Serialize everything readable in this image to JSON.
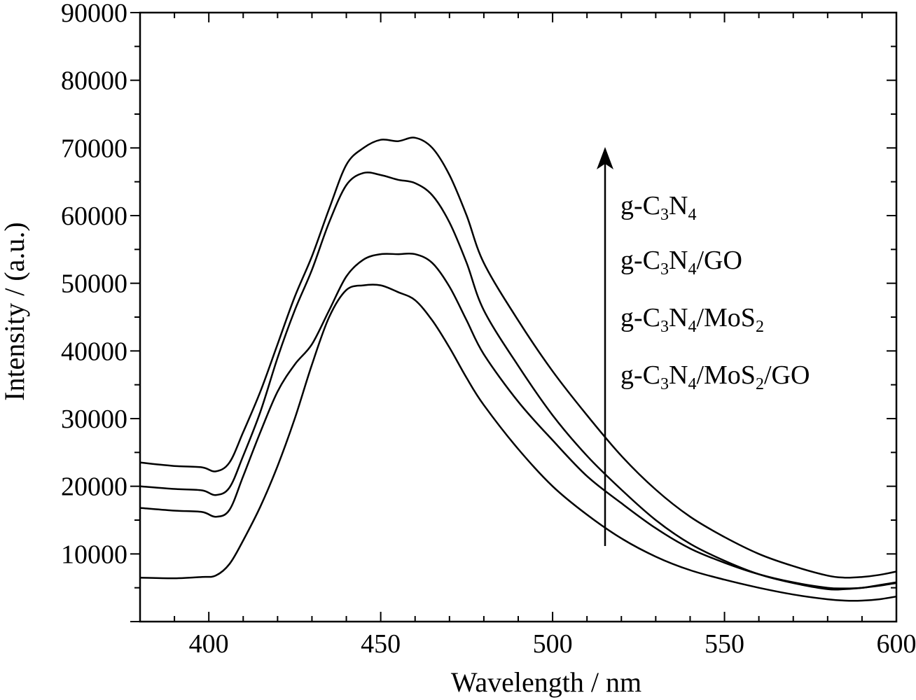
{
  "chart_data": {
    "type": "line",
    "xlabel": "Wavelength / nm",
    "ylabel": "Intensity / (a.u.)",
    "xlim": [
      380,
      600
    ],
    "ylim": [
      0,
      90000
    ],
    "xticks": [
      "400",
      "450",
      "500",
      "550",
      "600"
    ],
    "yticks": [
      "10000",
      "20000",
      "30000",
      "40000",
      "50000",
      "60000",
      "70000",
      "80000",
      "90000"
    ],
    "grid": false,
    "legend": {
      "placement": "right",
      "arrow": "up",
      "entries": [
        {
          "base": "g-C",
          "sub1": "3",
          "mid": "N",
          "sub2": "4",
          "tail": "",
          "sub3": "",
          "end": ""
        },
        {
          "base": "g-C",
          "sub1": "3",
          "mid": "N",
          "sub2": "4",
          "tail": "/GO",
          "sub3": "",
          "end": ""
        },
        {
          "base": "g-C",
          "sub1": "3",
          "mid": "N",
          "sub2": "4",
          "tail": "/MoS",
          "sub3": "2",
          "end": ""
        },
        {
          "base": "g-C",
          "sub1": "3",
          "mid": "N",
          "sub2": "4",
          "tail": "/MoS",
          "sub3": "2",
          "end": "/GO"
        }
      ]
    },
    "x": [
      380,
      390,
      398,
      402,
      406,
      410,
      415,
      420,
      425,
      430,
      435,
      440,
      445,
      450,
      455,
      460,
      465,
      470,
      475,
      480,
      490,
      500,
      510,
      520,
      530,
      540,
      550,
      560,
      570,
      580,
      585,
      590,
      595,
      600
    ],
    "series": [
      {
        "values": [
          23500,
          23000,
          22800,
          22200,
          23500,
          28000,
          34000,
          41000,
          48000,
          54000,
          61000,
          67500,
          70000,
          71200,
          71000,
          71500,
          70000,
          66000,
          60000,
          53000,
          44500,
          37000,
          30500,
          24500,
          19500,
          15500,
          12500,
          10000,
          8200,
          6800,
          6500,
          6600,
          6900,
          7400
        ]
      },
      {
        "values": [
          20000,
          19600,
          19400,
          18700,
          19800,
          24500,
          31000,
          39000,
          46000,
          52000,
          59000,
          64500,
          66300,
          66000,
          65300,
          64800,
          63000,
          59000,
          53000,
          46000,
          37800,
          30500,
          24500,
          19500,
          15000,
          11500,
          9000,
          7000,
          5700,
          4800,
          4800,
          5000,
          5300,
          5700
        ]
      },
      {
        "values": [
          16800,
          16400,
          16200,
          15500,
          16500,
          21500,
          28000,
          34000,
          38000,
          41000,
          46000,
          51000,
          53500,
          54300,
          54300,
          54300,
          53000,
          49500,
          44500,
          39500,
          32500,
          26800,
          21500,
          17500,
          13800,
          10800,
          8700,
          7000,
          5800,
          5000,
          4900,
          5000,
          5400,
          5800
        ]
      },
      {
        "values": [
          6500,
          6400,
          6600,
          6800,
          8500,
          12000,
          17000,
          23000,
          30000,
          38000,
          45000,
          49000,
          49700,
          49700,
          48700,
          47500,
          44500,
          40500,
          36000,
          32000,
          25500,
          20000,
          15800,
          12300,
          9600,
          7600,
          6200,
          5000,
          4000,
          3300,
          3100,
          3100,
          3300,
          3700
        ]
      }
    ]
  }
}
